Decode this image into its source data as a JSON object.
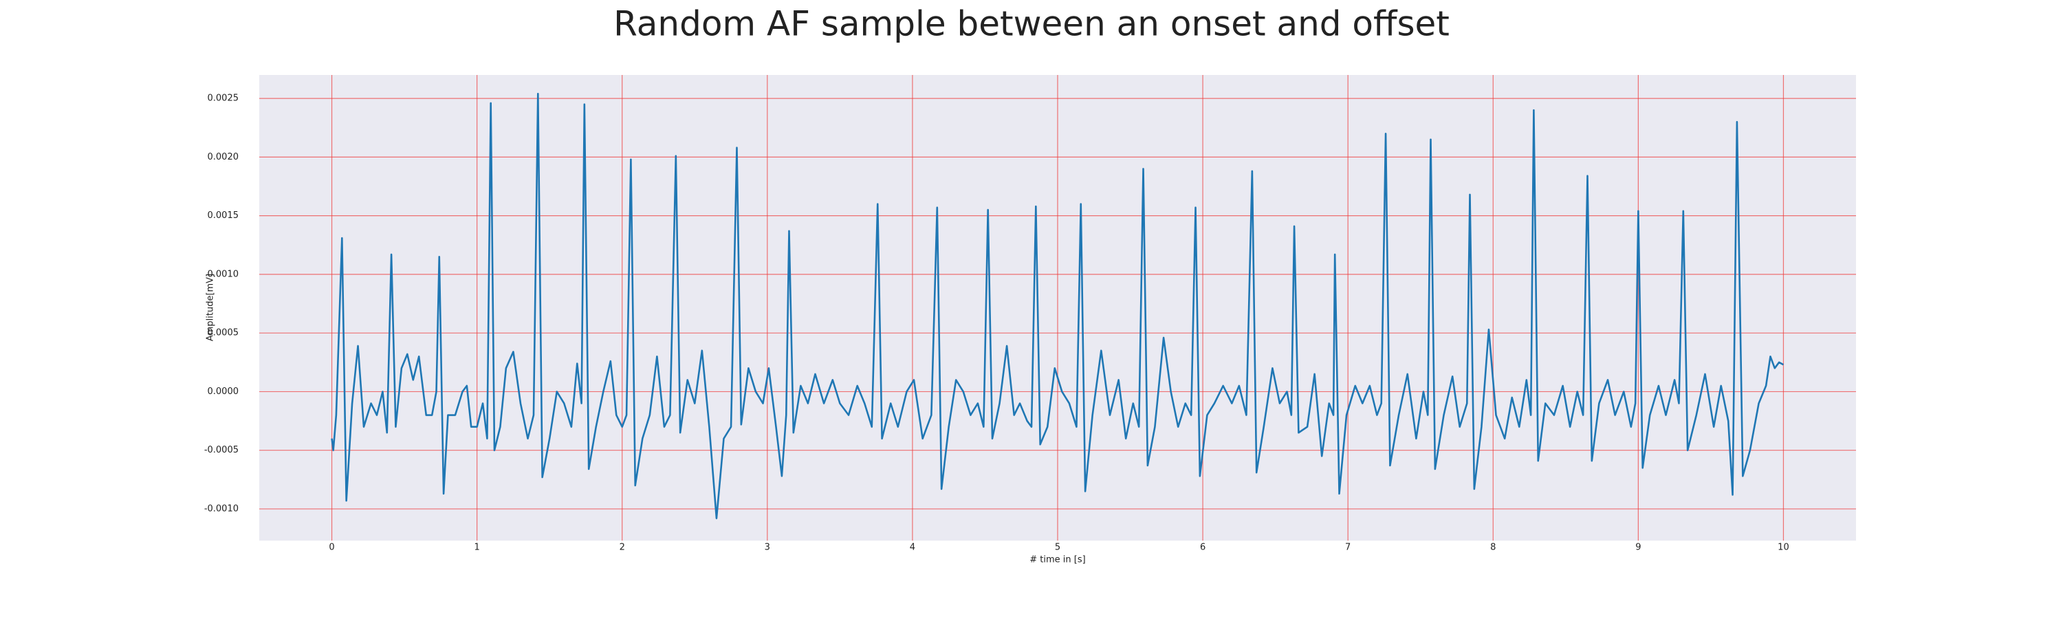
{
  "chart_data": {
    "type": "line",
    "title": "Random AF sample between an onset and offset",
    "xlabel": "# time in [s]",
    "ylabel": "Amplitude[mV]",
    "xlim": [
      -0.5,
      10.5
    ],
    "ylim": [
      -0.00127,
      0.0027
    ],
    "xticks": [
      0,
      1,
      2,
      3,
      4,
      5,
      6,
      7,
      8,
      9,
      10
    ],
    "yticks": [
      {
        "value": -0.001,
        "label": "-0.0010"
      },
      {
        "value": -0.0005,
        "label": "-0.0005"
      },
      {
        "value": 0,
        "label": "0.0000"
      },
      {
        "value": 0.0005,
        "label": "0.0005"
      },
      {
        "value": 0.001,
        "label": "0.0010"
      },
      {
        "value": 0.0015,
        "label": "0.0015"
      },
      {
        "value": 0.002,
        "label": "0.0020"
      },
      {
        "value": 0.0025,
        "label": "0.0025"
      }
    ],
    "grid": true,
    "grid_color": "#f03c3c",
    "background": "#eaeaf2",
    "x": [
      0,
      0.01,
      0.03,
      0.07,
      0.1,
      0.14,
      0.18,
      0.22,
      0.27,
      0.31,
      0.35,
      0.38,
      0.41,
      0.44,
      0.48,
      0.52,
      0.56,
      0.6,
      0.65,
      0.69,
      0.72,
      0.74,
      0.77,
      0.8,
      0.85,
      0.9,
      0.93,
      0.96,
      1.0,
      1.04,
      1.07,
      1.095,
      1.12,
      1.16,
      1.2,
      1.25,
      1.3,
      1.35,
      1.39,
      1.42,
      1.45,
      1.5,
      1.55,
      1.6,
      1.65,
      1.69,
      1.72,
      1.74,
      1.77,
      1.82,
      1.87,
      1.92,
      1.96,
      2.0,
      2.03,
      2.06,
      2.09,
      2.14,
      2.19,
      2.24,
      2.29,
      2.33,
      2.37,
      2.4,
      2.45,
      2.5,
      2.55,
      2.6,
      2.65,
      2.7,
      2.75,
      2.79,
      2.82,
      2.87,
      2.92,
      2.97,
      3.01,
      3.06,
      3.1,
      3.13,
      3.15,
      3.18,
      3.23,
      3.28,
      3.33,
      3.39,
      3.45,
      3.5,
      3.56,
      3.62,
      3.67,
      3.72,
      3.76,
      3.79,
      3.85,
      3.9,
      3.96,
      4.01,
      4.07,
      4.13,
      4.17,
      4.2,
      4.25,
      4.3,
      4.35,
      4.4,
      4.45,
      4.49,
      4.52,
      4.55,
      4.6,
      4.65,
      4.7,
      4.74,
      4.79,
      4.82,
      4.85,
      4.88,
      4.93,
      4.98,
      5.03,
      5.08,
      5.13,
      5.16,
      5.19,
      5.24,
      5.3,
      5.36,
      5.42,
      5.47,
      5.52,
      5.56,
      5.59,
      5.62,
      5.67,
      5.73,
      5.78,
      5.83,
      5.88,
      5.92,
      5.95,
      5.98,
      6.03,
      6.08,
      6.14,
      6.2,
      6.25,
      6.3,
      6.34,
      6.37,
      6.42,
      6.48,
      6.53,
      6.58,
      6.61,
      6.63,
      6.66,
      6.72,
      6.77,
      6.82,
      6.87,
      6.9,
      6.91,
      6.94,
      6.99,
      7.05,
      7.1,
      7.15,
      7.2,
      7.23,
      7.26,
      7.29,
      7.35,
      7.41,
      7.47,
      7.52,
      7.55,
      7.57,
      7.6,
      7.66,
      7.72,
      7.77,
      7.82,
      7.84,
      7.87,
      7.92,
      7.97,
      8.02,
      8.08,
      8.13,
      8.18,
      8.23,
      8.26,
      8.28,
      8.31,
      8.36,
      8.42,
      8.48,
      8.53,
      8.58,
      8.62,
      8.65,
      8.68,
      8.73,
      8.79,
      8.84,
      8.9,
      8.95,
      8.98,
      9.0,
      9.03,
      9.08,
      9.14,
      9.19,
      9.25,
      9.28,
      9.31,
      9.34,
      9.4,
      9.46,
      9.52,
      9.57,
      9.62,
      9.65,
      9.68,
      9.72,
      9.77,
      9.83,
      9.88,
      9.91,
      9.94,
      9.97,
      10.0
    ],
    "series": [
      {
        "color": "#1f77b4",
        "values": [
          -0.0004,
          -0.0005,
          -0.0002,
          0.00131,
          -0.00093,
          -0.0001,
          0.00039,
          -0.0003,
          -0.0001,
          -0.0002,
          0,
          -0.00035,
          0.00117,
          -0.0003,
          0.0002,
          0.00032,
          0.0001,
          0.0003,
          -0.0002,
          -0.0002,
          0,
          0.00115,
          -0.00087,
          -0.0002,
          -0.0002,
          0,
          5e-05,
          -0.0003,
          -0.0003,
          -0.0001,
          -0.0004,
          0.00246,
          -0.0005,
          -0.0003,
          0.0002,
          0.00034,
          -0.0001,
          -0.0004,
          -0.0002,
          0.00254,
          -0.00073,
          -0.0004,
          0,
          -0.0001,
          -0.0003,
          0.00024,
          -0.0001,
          0.00245,
          -0.00066,
          -0.0003,
          0,
          0.00026,
          -0.0002,
          -0.0003,
          -0.0002,
          0.00198,
          -0.0008,
          -0.0004,
          -0.0002,
          0.0003,
          -0.0003,
          -0.0002,
          0.00201,
          -0.00035,
          0.0001,
          -0.0001,
          0.00035,
          -0.0003,
          -0.00108,
          -0.0004,
          -0.0003,
          0.00208,
          -0.00028,
          0.0002,
          0,
          -0.0001,
          0.0002,
          -0.0003,
          -0.00072,
          -0.0002,
          0.00137,
          -0.00035,
          5e-05,
          -0.0001,
          0.00015,
          -0.0001,
          0.0001,
          -0.0001,
          -0.0002,
          5e-05,
          -0.0001,
          -0.0003,
          0.0016,
          -0.0004,
          -0.0001,
          -0.0003,
          0,
          0.0001,
          -0.0004,
          -0.0002,
          0.00157,
          -0.00083,
          -0.0003,
          0.0001,
          0,
          -0.0002,
          -0.0001,
          -0.0003,
          0.00155,
          -0.0004,
          -0.0001,
          0.00039,
          -0.0002,
          -0.0001,
          -0.00025,
          -0.0003,
          0.00158,
          -0.00045,
          -0.0003,
          0.0002,
          0,
          -0.0001,
          -0.0003,
          0.0016,
          -0.00085,
          -0.0002,
          0.00035,
          -0.0002,
          0.0001,
          -0.0004,
          -0.0001,
          -0.0003,
          0.0019,
          -0.00063,
          -0.0003,
          0.00046,
          0,
          -0.0003,
          -0.0001,
          -0.0002,
          0.00157,
          -0.00072,
          -0.0002,
          -0.0001,
          5e-05,
          -0.0001,
          5e-05,
          -0.0002,
          0.00188,
          -0.00069,
          -0.0003,
          0.0002,
          -0.0001,
          0,
          -0.0002,
          0.00141,
          -0.00035,
          -0.0003,
          0.00015,
          -0.00055,
          -0.0001,
          -0.0002,
          0.00117,
          -0.00087,
          -0.0002,
          5e-05,
          -0.0001,
          5e-05,
          -0.0002,
          -0.0001,
          0.0022,
          -0.00063,
          -0.0002,
          0.00015,
          -0.0004,
          0,
          -0.0002,
          0.00215,
          -0.00066,
          -0.0002,
          0.00013,
          -0.0003,
          -0.0001,
          0.00168,
          -0.00083,
          -0.0003,
          0.00053,
          -0.0002,
          -0.0004,
          -5e-05,
          -0.0003,
          0.0001,
          -0.0002,
          0.0024,
          -0.00059,
          -0.0001,
          -0.0002,
          5e-05,
          -0.0003,
          0,
          -0.0002,
          0.00184,
          -0.00059,
          -0.0001,
          0.0001,
          -0.0002,
          0,
          -0.0003,
          -0.0001,
          0.00154,
          -0.00065,
          -0.0002,
          5e-05,
          -0.0002,
          0.0001,
          -0.0001,
          0.00154,
          -0.0005,
          -0.0002,
          0.00015,
          -0.0003,
          5e-05,
          -0.00025,
          -0.00088,
          0.0023,
          -0.00072,
          -0.0005,
          -0.0001,
          5e-05,
          0.0003,
          0.0002,
          0.00025,
          0.00023
        ]
      }
    ]
  }
}
